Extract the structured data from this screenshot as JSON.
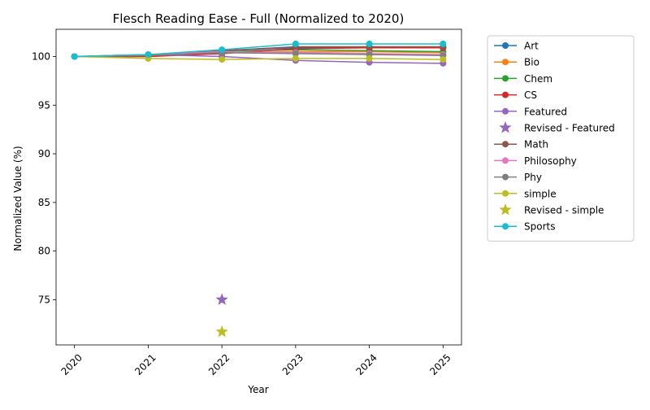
{
  "chart_data": {
    "type": "line",
    "title": "Flesch Reading Ease - Full (Normalized to 2020)",
    "xlabel": "Year",
    "ylabel": "Normalized Value (%)",
    "x": [
      2020,
      2021,
      2022,
      2023,
      2024,
      2025
    ],
    "x_tick_labels": [
      "2020",
      "2021",
      "2022",
      "2023",
      "2024",
      "2025"
    ],
    "xlim": [
      2019.75,
      2025.25
    ],
    "ylim": [
      70.35,
      102.8
    ],
    "y_ticks": [
      75,
      80,
      85,
      90,
      95,
      100
    ],
    "y_tick_labels": [
      "75",
      "80",
      "85",
      "90",
      "95",
      "100"
    ],
    "grid": false,
    "legend_placement": "outside-right",
    "series": [
      {
        "name": "Art",
        "color": "#1f77b4",
        "values": [
          100,
          100.1,
          100.6,
          100.9,
          100.9,
          100.9
        ]
      },
      {
        "name": "Bio",
        "color": "#ff7f0e",
        "values": [
          100,
          100.0,
          100.4,
          100.5,
          100.5,
          100.4
        ]
      },
      {
        "name": "Chem",
        "color": "#2ca02c",
        "values": [
          100,
          100.1,
          100.5,
          100.7,
          100.6,
          100.5
        ]
      },
      {
        "name": "CS",
        "color": "#d62728",
        "values": [
          100,
          100.0,
          100.3,
          100.8,
          100.9,
          100.9
        ]
      },
      {
        "name": "Featured",
        "color": "#9467bd",
        "values": [
          100,
          100.2,
          100.0,
          99.6,
          99.4,
          99.3
        ]
      },
      {
        "name": "Math",
        "color": "#8c564b",
        "values": [
          100,
          100.1,
          100.6,
          101.0,
          101.0,
          101.0
        ]
      },
      {
        "name": "Philosophy",
        "color": "#e377c2",
        "values": [
          100,
          100.2,
          100.5,
          100.4,
          100.3,
          100.2
        ]
      },
      {
        "name": "Phy",
        "color": "#7f7f7f",
        "values": [
          100,
          100.1,
          100.4,
          100.3,
          100.2,
          100.1
        ]
      },
      {
        "name": "simple",
        "color": "#bcbd22",
        "values": [
          100,
          99.8,
          99.7,
          99.8,
          99.8,
          99.7
        ]
      },
      {
        "name": "Sports",
        "color": "#17becf",
        "values": [
          100,
          100.2,
          100.7,
          101.3,
          101.3,
          101.3
        ]
      }
    ],
    "revised_points": [
      {
        "name": "Revised - Featured",
        "color": "#9467bd",
        "x": 2022,
        "y": 75.0
      },
      {
        "name": "Revised - simple",
        "color": "#bcbd22",
        "x": 2022,
        "y": 71.7
      }
    ],
    "legend": [
      {
        "label": "Art",
        "color": "#1f77b4",
        "marker": "line-circle"
      },
      {
        "label": "Bio",
        "color": "#ff7f0e",
        "marker": "line-circle"
      },
      {
        "label": "Chem",
        "color": "#2ca02c",
        "marker": "line-circle"
      },
      {
        "label": "CS",
        "color": "#d62728",
        "marker": "line-circle"
      },
      {
        "label": "Featured",
        "color": "#9467bd",
        "marker": "line-circle"
      },
      {
        "label": "Revised - Featured",
        "color": "#9467bd",
        "marker": "star"
      },
      {
        "label": "Math",
        "color": "#8c564b",
        "marker": "line-circle"
      },
      {
        "label": "Philosophy",
        "color": "#e377c2",
        "marker": "line-circle"
      },
      {
        "label": "Phy",
        "color": "#7f7f7f",
        "marker": "line-circle"
      },
      {
        "label": "simple",
        "color": "#bcbd22",
        "marker": "line-circle"
      },
      {
        "label": "Revised - simple",
        "color": "#bcbd22",
        "marker": "star"
      },
      {
        "label": "Sports",
        "color": "#17becf",
        "marker": "line-circle"
      }
    ]
  }
}
